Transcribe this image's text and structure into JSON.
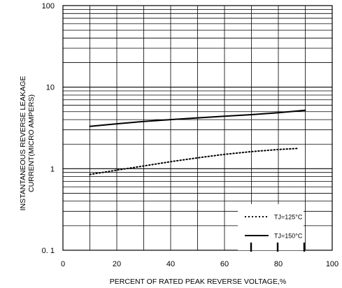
{
  "chart_data": {
    "type": "line",
    "xlabel": "PERCENT OF RATED PEAK REVERSE VOLTAGE,%",
    "ylabel": [
      "INSTANTANEOUS REVERSE LEAKAGE",
      "CURRENT(MICRO AMPERS)"
    ],
    "xlim": [
      0,
      100
    ],
    "ylim": [
      0.1,
      100
    ],
    "yscale": "log",
    "x_ticks": [
      0,
      20,
      40,
      60,
      80,
      100
    ],
    "x_tick_labels": [
      "0",
      "20",
      "40",
      "60",
      "80",
      "100"
    ],
    "y_ticks": [
      0.1,
      1,
      10,
      100
    ],
    "y_tick_labels": [
      "0. 1",
      "1",
      "10",
      "100"
    ],
    "grid": true,
    "legend_position": "bottom-right",
    "series": [
      {
        "name": "TJ=125°C",
        "style": "dotted",
        "color": "#000000",
        "x": [
          10,
          20,
          30,
          40,
          50,
          60,
          70,
          80,
          87
        ],
        "y": [
          0.85,
          0.96,
          1.08,
          1.22,
          1.36,
          1.5,
          1.62,
          1.72,
          1.77
        ]
      },
      {
        "name": "TJ=150°C",
        "style": "solid",
        "color": "#000000",
        "x": [
          10,
          20,
          30,
          40,
          50,
          60,
          70,
          80,
          90
        ],
        "y": [
          3.3,
          3.55,
          3.8,
          4.0,
          4.2,
          4.4,
          4.6,
          4.85,
          5.2
        ]
      }
    ]
  }
}
